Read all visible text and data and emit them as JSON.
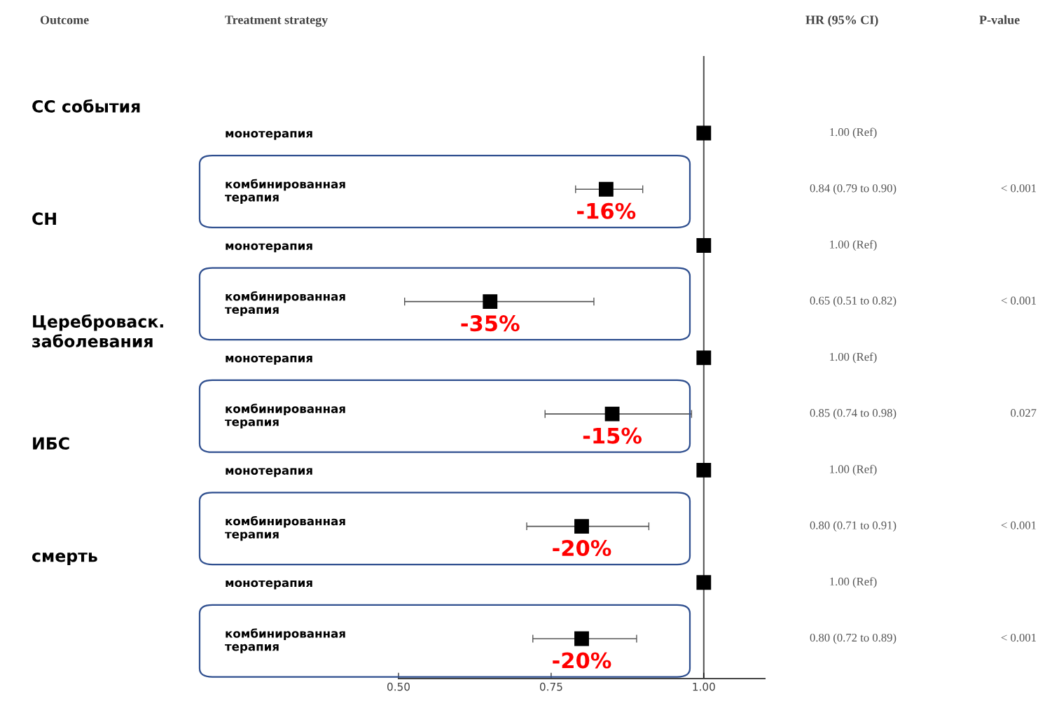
{
  "chart_data": {
    "type": "scatter",
    "orientation": "horizontal",
    "categories": [
      "монотерапия",
      "комбинированная\nтерапия",
      "монотерапия",
      "комбинированная\nтерапия",
      "монотерапия",
      "комбинированная\nтерапия",
      "монотерапия",
      "комбинированная\nтерапия",
      "монотерапия",
      "комбинированная\nтерапия"
    ],
    "values": [
      1.0,
      0.84,
      1.0,
      0.65,
      1.0,
      0.85,
      1.0,
      0.8,
      1.0,
      0.8
    ],
    "errors": [
      null,
      [
        0.79,
        0.9
      ],
      null,
      [
        0.51,
        0.82
      ],
      null,
      [
        0.74,
        0.98
      ],
      null,
      [
        0.71,
        0.91
      ],
      null,
      [
        0.72,
        0.89
      ]
    ],
    "color": "#000000",
    "marker": "square",
    "xlim": [
      0.5,
      1.1
    ],
    "xticks": [
      {
        "value": 0.5,
        "label": "0.50"
      },
      {
        "value": 0.75,
        "label": "0.75"
      },
      {
        "value": 1.0,
        "label": "1.00"
      }
    ],
    "ref_lines": [
      {
        "axis": "x",
        "value": 1.0,
        "color": "#555555"
      }
    ],
    "annotations": [
      "Outcome",
      "Treatment strategy",
      "HR (95% CI)",
      "P-value",
      "СС события",
      "СН",
      "Цереброваск.\nзаболевания",
      "ИБС",
      "смерть",
      "1.00 (Ref)",
      "0.84 (0.79 to 0.90)",
      "1.00 (Ref)",
      "0.65 (0.51 to 0.82)",
      "1.00 (Ref)",
      "0.85 (0.74 to 0.98)",
      "1.00 (Ref)",
      "0.80 (0.71 to 0.91)",
      "1.00 (Ref)",
      "0.80 (0.72 to 0.89)",
      "< 0.001",
      "< 0.001",
      "0.027",
      "< 0.001",
      "< 0.001",
      "-16%",
      "-35%",
      "-15%",
      "-20%",
      "-20%"
    ],
    "grid": false
  }
}
